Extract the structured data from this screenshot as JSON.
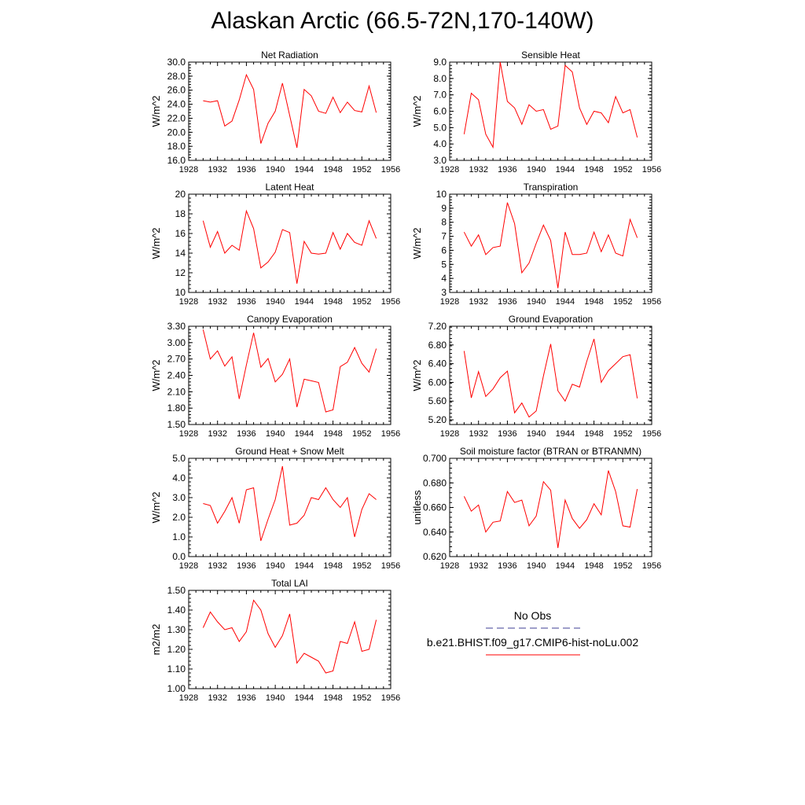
{
  "page": {
    "title": "Alaskan Arctic (66.5-72N,170-140W)"
  },
  "legend": {
    "obs_label": "No Obs",
    "obs_color": "#6666aa",
    "model_label": "b.e21.BHIST.f09_g17.CMIP6-hist-noLu.002",
    "model_color": "#ff0000"
  },
  "chart_data": [
    {
      "type": "line",
      "title": "Net Radiation",
      "xlabel": "",
      "ylabel": "W/m^2",
      "xlim": [
        1928,
        1956
      ],
      "ylim": [
        16.0,
        30.0
      ],
      "xticks": [
        "1928",
        "1932",
        "1936",
        "1940",
        "1944",
        "1948",
        "1952",
        "1956"
      ],
      "yticks": [
        "16.0",
        "18.0",
        "20.0",
        "22.0",
        "24.0",
        "26.0",
        "28.0",
        "30.0"
      ],
      "x": [
        1930,
        1931,
        1932,
        1933,
        1934,
        1935,
        1936,
        1937,
        1938,
        1939,
        1940,
        1941,
        1942,
        1943,
        1944,
        1945,
        1946,
        1947,
        1948,
        1949,
        1950,
        1951,
        1952,
        1953,
        1954
      ],
      "series": [
        {
          "values": [
            24.5,
            24.3,
            24.5,
            20.9,
            21.6,
            24.6,
            28.2,
            26.1,
            18.4,
            21.3,
            23.0,
            27.0,
            22.4,
            17.8,
            26.1,
            25.2,
            23.0,
            22.7,
            25.0,
            22.8,
            24.3,
            23.1,
            22.9,
            26.6,
            22.8
          ]
        }
      ]
    },
    {
      "type": "line",
      "title": "Sensible Heat",
      "xlabel": "",
      "ylabel": "W/m^2",
      "xlim": [
        1928,
        1956
      ],
      "ylim": [
        3.0,
        9.0
      ],
      "xticks": [
        "1928",
        "1932",
        "1936",
        "1940",
        "1944",
        "1948",
        "1952",
        "1956"
      ],
      "yticks": [
        "3.0",
        "4.0",
        "5.0",
        "6.0",
        "7.0",
        "8.0",
        "9.0"
      ],
      "x": [
        1930,
        1931,
        1932,
        1933,
        1934,
        1935,
        1936,
        1937,
        1938,
        1939,
        1940,
        1941,
        1942,
        1943,
        1944,
        1945,
        1946,
        1947,
        1948,
        1949,
        1950,
        1951,
        1952,
        1953,
        1954
      ],
      "series": [
        {
          "values": [
            4.6,
            7.1,
            6.7,
            4.6,
            3.8,
            9.0,
            6.6,
            6.2,
            5.2,
            6.4,
            6.0,
            6.1,
            4.9,
            5.1,
            8.8,
            8.4,
            6.2,
            5.2,
            6.0,
            5.9,
            5.3,
            6.9,
            5.9,
            6.1,
            4.4
          ]
        }
      ]
    },
    {
      "type": "line",
      "title": "Latent Heat",
      "xlabel": "",
      "ylabel": "W/m^2",
      "xlim": [
        1928,
        1956
      ],
      "ylim": [
        10,
        20
      ],
      "xticks": [
        "1928",
        "1932",
        "1936",
        "1940",
        "1944",
        "1948",
        "1952",
        "1956"
      ],
      "yticks": [
        "10",
        "12",
        "14",
        "16",
        "18",
        "20"
      ],
      "x": [
        1930,
        1931,
        1932,
        1933,
        1934,
        1935,
        1936,
        1937,
        1938,
        1939,
        1940,
        1941,
        1942,
        1943,
        1944,
        1945,
        1946,
        1947,
        1948,
        1949,
        1950,
        1951,
        1952,
        1953,
        1954
      ],
      "series": [
        {
          "values": [
            17.3,
            14.6,
            16.2,
            14.0,
            14.8,
            14.3,
            18.3,
            16.5,
            12.5,
            13.1,
            14.1,
            16.4,
            16.1,
            10.9,
            15.2,
            14.0,
            13.9,
            14.0,
            16.1,
            14.4,
            16.0,
            15.1,
            14.8,
            17.3,
            15.5
          ]
        }
      ]
    },
    {
      "type": "line",
      "title": "Transpiration",
      "xlabel": "",
      "ylabel": "W/m^2",
      "xlim": [
        1928,
        1956
      ],
      "ylim": [
        3,
        10
      ],
      "xticks": [
        "1928",
        "1932",
        "1936",
        "1940",
        "1944",
        "1948",
        "1952",
        "1956"
      ],
      "yticks": [
        "3",
        "4",
        "5",
        "6",
        "7",
        "8",
        "9",
        "10"
      ],
      "x": [
        1930,
        1931,
        1932,
        1933,
        1934,
        1935,
        1936,
        1937,
        1938,
        1939,
        1940,
        1941,
        1942,
        1943,
        1944,
        1945,
        1946,
        1947,
        1948,
        1949,
        1950,
        1951,
        1952,
        1953,
        1954
      ],
      "series": [
        {
          "values": [
            7.3,
            6.3,
            7.1,
            5.7,
            6.2,
            6.3,
            9.4,
            7.9,
            4.4,
            5.1,
            6.5,
            7.8,
            6.7,
            3.3,
            7.3,
            5.7,
            5.7,
            5.8,
            7.3,
            5.9,
            7.1,
            5.8,
            5.6,
            8.2,
            6.9
          ]
        }
      ]
    },
    {
      "type": "line",
      "title": "Canopy Evaporation",
      "xlabel": "",
      "ylabel": "W/m^2",
      "xlim": [
        1928,
        1956
      ],
      "ylim": [
        1.5,
        3.3
      ],
      "xticks": [
        "1928",
        "1932",
        "1936",
        "1940",
        "1944",
        "1948",
        "1952",
        "1956"
      ],
      "yticks": [
        "1.50",
        "1.80",
        "2.10",
        "2.40",
        "2.70",
        "3.00",
        "3.30"
      ],
      "x": [
        1930,
        1931,
        1932,
        1933,
        1934,
        1935,
        1936,
        1937,
        1938,
        1939,
        1940,
        1941,
        1942,
        1943,
        1944,
        1945,
        1946,
        1947,
        1948,
        1949,
        1950,
        1951,
        1952,
        1953,
        1954
      ],
      "series": [
        {
          "values": [
            3.24,
            2.7,
            2.85,
            2.57,
            2.74,
            1.97,
            2.59,
            3.18,
            2.55,
            2.71,
            2.28,
            2.42,
            2.7,
            1.82,
            2.33,
            2.3,
            2.27,
            1.73,
            1.77,
            2.56,
            2.64,
            2.91,
            2.62,
            2.46,
            2.89
          ]
        }
      ]
    },
    {
      "type": "line",
      "title": "Ground Evaporation",
      "xlabel": "",
      "ylabel": "W/m^2",
      "xlim": [
        1928,
        1956
      ],
      "ylim": [
        5.1,
        7.2
      ],
      "xticks": [
        "1928",
        "1932",
        "1936",
        "1940",
        "1944",
        "1948",
        "1952",
        "1956"
      ],
      "yticks": [
        "5.20",
        "5.60",
        "6.00",
        "6.40",
        "6.80",
        "7.20"
      ],
      "x": [
        1930,
        1931,
        1932,
        1933,
        1934,
        1935,
        1936,
        1937,
        1938,
        1939,
        1940,
        1941,
        1942,
        1943,
        1944,
        1945,
        1946,
        1947,
        1948,
        1949,
        1950,
        1951,
        1952,
        1953,
        1954
      ],
      "series": [
        {
          "values": [
            6.67,
            5.67,
            6.23,
            5.7,
            5.86,
            6.1,
            6.24,
            5.35,
            5.56,
            5.26,
            5.39,
            6.14,
            6.82,
            5.82,
            5.6,
            5.96,
            5.9,
            6.45,
            6.93,
            6.0,
            6.25,
            6.4,
            6.55,
            6.59,
            5.66
          ]
        }
      ]
    },
    {
      "type": "line",
      "title": "Ground Heat + Snow Melt",
      "xlabel": "",
      "ylabel": "W/m^2",
      "xlim": [
        1928,
        1956
      ],
      "ylim": [
        0.0,
        5.0
      ],
      "xticks": [
        "1928",
        "1932",
        "1936",
        "1940",
        "1944",
        "1948",
        "1952",
        "1956"
      ],
      "yticks": [
        "0.0",
        "1.0",
        "2.0",
        "3.0",
        "4.0",
        "5.0"
      ],
      "x": [
        1930,
        1931,
        1932,
        1933,
        1934,
        1935,
        1936,
        1937,
        1938,
        1939,
        1940,
        1941,
        1942,
        1943,
        1944,
        1945,
        1946,
        1947,
        1948,
        1949,
        1950,
        1951,
        1952,
        1953,
        1954
      ],
      "series": [
        {
          "values": [
            2.7,
            2.6,
            1.7,
            2.3,
            3.0,
            1.7,
            3.4,
            3.5,
            0.8,
            1.9,
            2.9,
            4.6,
            1.6,
            1.7,
            2.1,
            3.0,
            2.9,
            3.5,
            2.9,
            2.5,
            3.0,
            1.0,
            2.4,
            3.2,
            2.9
          ]
        }
      ]
    },
    {
      "type": "line",
      "title": "Soil moisture factor (BTRAN or BTRANMN)",
      "xlabel": "",
      "ylabel": "unitless",
      "xlim": [
        1928,
        1956
      ],
      "ylim": [
        0.62,
        0.7
      ],
      "xticks": [
        "1928",
        "1932",
        "1936",
        "1940",
        "1944",
        "1948",
        "1952",
        "1956"
      ],
      "yticks": [
        "0.620",
        "0.640",
        "0.660",
        "0.680",
        "0.700"
      ],
      "x": [
        1930,
        1931,
        1932,
        1933,
        1934,
        1935,
        1936,
        1937,
        1938,
        1939,
        1940,
        1941,
        1942,
        1943,
        1944,
        1945,
        1946,
        1947,
        1948,
        1949,
        1950,
        1951,
        1952,
        1953,
        1954
      ],
      "series": [
        {
          "values": [
            0.669,
            0.657,
            0.662,
            0.64,
            0.648,
            0.649,
            0.673,
            0.664,
            0.666,
            0.645,
            0.653,
            0.681,
            0.674,
            0.627,
            0.666,
            0.651,
            0.643,
            0.65,
            0.663,
            0.654,
            0.69,
            0.673,
            0.645,
            0.644,
            0.675
          ]
        }
      ]
    },
    {
      "type": "line",
      "title": "Total LAI",
      "xlabel": "",
      "ylabel": "m2/m2",
      "xlim": [
        1928,
        1956
      ],
      "ylim": [
        1.0,
        1.5
      ],
      "xticks": [
        "1928",
        "1932",
        "1936",
        "1940",
        "1944",
        "1948",
        "1952",
        "1956"
      ],
      "yticks": [
        "1.00",
        "1.10",
        "1.20",
        "1.30",
        "1.40",
        "1.50"
      ],
      "x": [
        1930,
        1931,
        1932,
        1933,
        1934,
        1935,
        1936,
        1937,
        1938,
        1939,
        1940,
        1941,
        1942,
        1943,
        1944,
        1945,
        1946,
        1947,
        1948,
        1949,
        1950,
        1951,
        1952,
        1953,
        1954
      ],
      "series": [
        {
          "values": [
            1.31,
            1.39,
            1.34,
            1.3,
            1.31,
            1.24,
            1.29,
            1.45,
            1.4,
            1.28,
            1.21,
            1.27,
            1.38,
            1.13,
            1.18,
            1.16,
            1.14,
            1.08,
            1.09,
            1.24,
            1.23,
            1.34,
            1.19,
            1.2,
            1.35
          ]
        }
      ]
    }
  ]
}
